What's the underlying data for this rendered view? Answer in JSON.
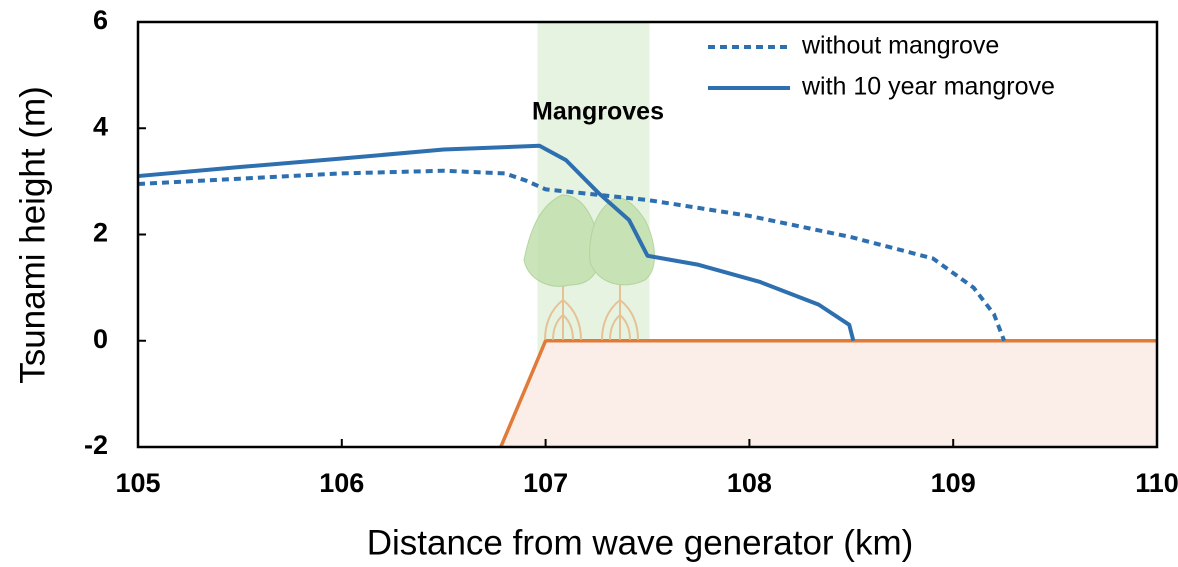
{
  "chart_data": {
    "type": "line",
    "xlabel": "Distance from wave generator (km)",
    "ylabel": "Tsunami height (m)",
    "annotation": "Mangroves",
    "annotation_color": "#5b9a3c",
    "xlim": [
      105,
      110
    ],
    "ylim": [
      -2,
      6
    ],
    "xticks": [
      105,
      106,
      107,
      108,
      109,
      110
    ],
    "yticks": [
      -2,
      0,
      2,
      4,
      6
    ],
    "legend": "upper right",
    "mangrove_zone": {
      "x": [
        106.96,
        107.51
      ],
      "color": "#e6f3e0"
    },
    "terrain": {
      "x": [
        106.78,
        107,
        110
      ],
      "values": [
        -2,
        0,
        0
      ],
      "color": "#e07b39",
      "fill": "#fbeee8"
    },
    "series": [
      {
        "name": "without mangrove",
        "color": "#2e6fb0",
        "style": "dotted",
        "x": [
          105,
          105.5,
          106,
          106.5,
          106.8,
          106.9,
          107,
          107.5,
          108,
          108.5,
          108.9,
          109.1,
          109.2,
          109.25
        ],
        "values": [
          2.95,
          3.05,
          3.15,
          3.2,
          3.15,
          3.02,
          2.85,
          2.65,
          2.35,
          1.95,
          1.55,
          1.0,
          0.5,
          0
        ]
      },
      {
        "name": "with 10 year mangrove",
        "color": "#2e6fb0",
        "style": "solid",
        "x": [
          105,
          105.5,
          106,
          106.5,
          106.97,
          107.1,
          107.26,
          107.41,
          107.5,
          107.75,
          108.05,
          108.34,
          108.49,
          108.51
        ],
        "values": [
          3.1,
          3.27,
          3.43,
          3.6,
          3.67,
          3.4,
          2.78,
          2.27,
          1.6,
          1.43,
          1.11,
          0.68,
          0.3,
          0
        ]
      }
    ]
  }
}
